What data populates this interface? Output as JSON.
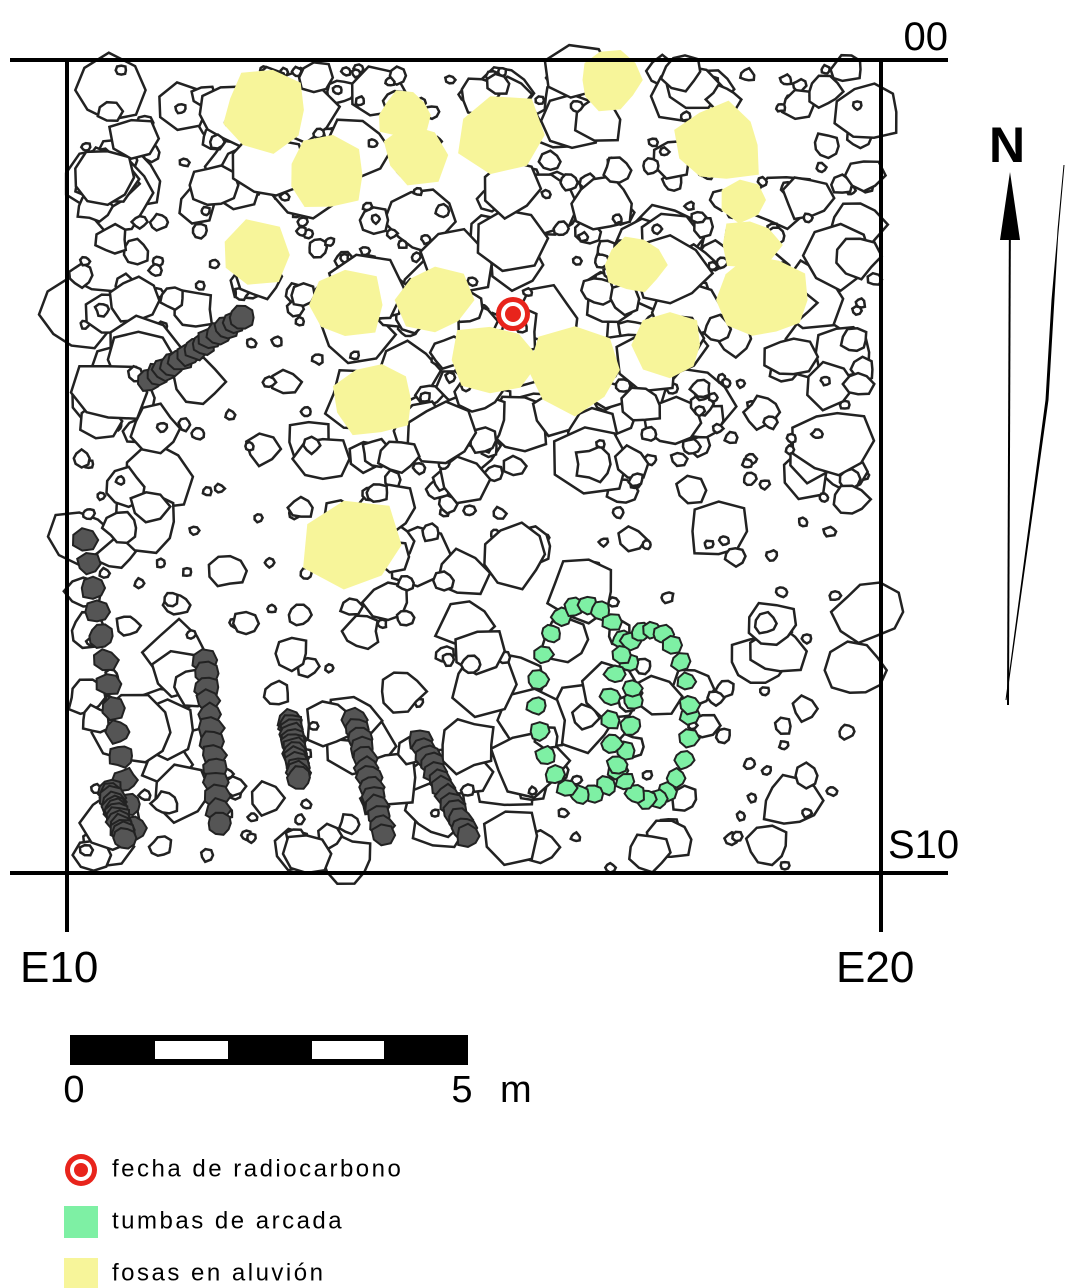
{
  "map": {
    "grid_labels": {
      "top": "00",
      "right": "S10",
      "left_bottom": "E10",
      "right_bottom": "E20"
    },
    "north": "N",
    "scale": {
      "start": "0",
      "end": "5",
      "unit": "m"
    },
    "legend": [
      {
        "label": "fecha de radiocarbono",
        "color": "#e8241c"
      },
      {
        "label": "tumbas de arcada",
        "color": "#7ef0a4"
      },
      {
        "label": "fosas en aluvión",
        "color": "#f7f59a"
      }
    ]
  }
}
